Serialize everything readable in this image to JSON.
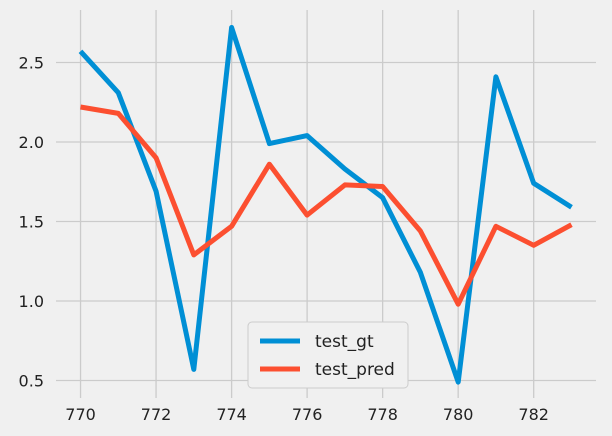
{
  "chart_data": {
    "type": "line",
    "title": "",
    "xlabel": "",
    "ylabel": "",
    "x": [
      770,
      771,
      772,
      773,
      774,
      775,
      776,
      777,
      778,
      779,
      780,
      781,
      782,
      783
    ],
    "series": [
      {
        "name": "test_gt",
        "color": "#008fd5",
        "values": [
          2.57,
          2.31,
          1.69,
          0.57,
          2.72,
          1.99,
          2.04,
          1.83,
          1.65,
          1.18,
          0.49,
          2.41,
          1.74,
          1.59
        ]
      },
      {
        "name": "test_pred",
        "color": "#fc4f30",
        "values": [
          2.22,
          2.18,
          1.9,
          1.29,
          1.47,
          1.86,
          1.54,
          1.73,
          1.72,
          1.44,
          0.98,
          1.47,
          1.35,
          1.48
        ]
      }
    ],
    "xticks": [
      770,
      772,
      774,
      776,
      778,
      780,
      782
    ],
    "yticks": [
      0.5,
      1.0,
      1.5,
      2.0,
      2.5
    ],
    "xtick_labels": [
      "770",
      "772",
      "774",
      "776",
      "778",
      "780",
      "782"
    ],
    "ytick_labels": [
      "0.5",
      "1.0",
      "1.5",
      "2.0",
      "2.5"
    ],
    "xlim": [
      769.35,
      783.65
    ],
    "ylim": [
      0.39,
      2.83
    ],
    "grid": true,
    "legend_position": "lower-center",
    "background": "#f0f0f0",
    "grid_color": "#cbcbcb"
  }
}
